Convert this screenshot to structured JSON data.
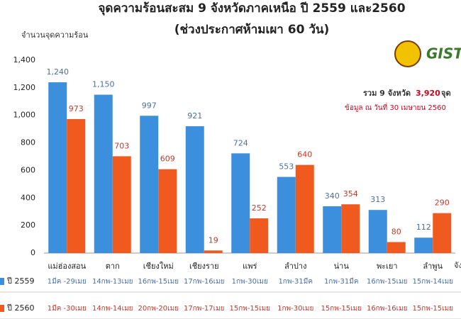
{
  "chart_data": {
    "type": "bar",
    "title": "จุดความร้อนสะสม 9 จังหวัดภาคเหนือ ปี 2559 และ2560",
    "subtitle": "(ช่วงประกาศห้ามเผา 60 วัน)",
    "y_label": "จำนวนจุดความร้อน",
    "x_label": "จังหวัด",
    "logo_text": "GISTDA",
    "annotations": {
      "total_prefix": "รวม 9 จังหวัด",
      "total": "3,920",
      "total_suffix": "จุด",
      "source": "ข้อมูล ณ วันที่ 30 เมษายน 2560"
    },
    "categories": [
      "แม่ฮ่องสอน",
      "ตาก",
      "เชียงใหม่",
      "เชียงราย",
      "แพร่",
      "ลำปาง",
      "น่าน",
      "พะเยา",
      "ลำพูน"
    ],
    "series": [
      {
        "name": "ปี 2559",
        "color": "#3b8fdc",
        "label_color": "#4a6fa5",
        "values": [
          1240,
          1150,
          997,
          921,
          724,
          553,
          340,
          313,
          112
        ],
        "value_labels": [
          "1,240",
          "1,150",
          "997",
          "921",
          "724",
          "553",
          "340",
          "313",
          "112"
        ],
        "periods": [
          "1มีค -29เมย",
          "14กพ-13เมย",
          "16กพ-15เมย",
          "17กพ-16เมย",
          "1กพ-30เมย",
          "1กพ-31มีค",
          "1กพ-31มีค",
          "16กพ-15เมย",
          "15กพ-14เมย"
        ]
      },
      {
        "name": "ปี 2560",
        "color": "#f15a1e",
        "label_color": "#c0392b",
        "values": [
          973,
          703,
          609,
          19,
          252,
          640,
          354,
          80,
          290
        ],
        "value_labels": [
          "973",
          "703",
          "609",
          "19",
          "252",
          "640",
          "354",
          "80",
          "290"
        ],
        "periods": [
          "1มีค -30เมย",
          "14กพ-14เมย",
          "20กพ-20เมย",
          "17กพ-17เมย",
          "15กพ-15เมย",
          "1กพ-30เมย",
          "15กพ-15เมย",
          "16กพ-16เมย",
          "15กพ-15เมย"
        ]
      }
    ],
    "ylim": [
      0,
      1400
    ],
    "yticks": [
      0,
      200,
      400,
      600,
      800,
      {
        "value": 1000,
        "label": "1,000"
      },
      {
        "value": 1200,
        "label": "1,200"
      },
      {
        "value": 1400,
        "label": "1,400"
      }
    ],
    "grid": false
  }
}
